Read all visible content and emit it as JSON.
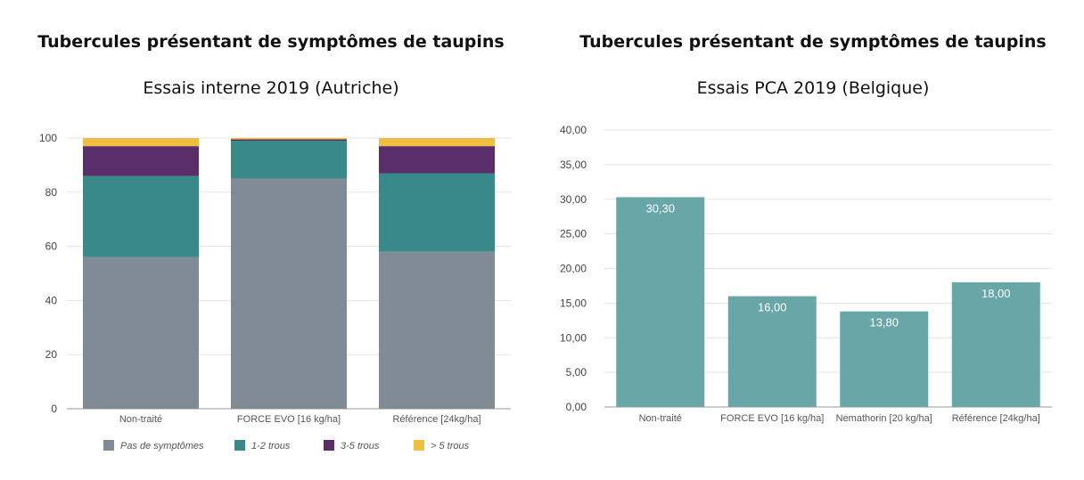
{
  "chart_data": [
    {
      "type": "bar",
      "stacked": true,
      "title": "Tubercules présentant de symptômes de taupins",
      "subtitle": "Essais interne 2019 (Autriche)",
      "categories": [
        "Non-traité",
        "FORCE EVO [16 kg/ha]",
        "Référence [24kg/ha]"
      ],
      "series": [
        {
          "name": "Pas de symptômes",
          "color": "#808b96",
          "values": [
            56,
            85,
            58
          ]
        },
        {
          "name": "1-2 trous",
          "color": "#39888a",
          "values": [
            30,
            14,
            29
          ]
        },
        {
          "name": "3-5 trous",
          "color": "#5a2e68",
          "values": [
            11,
            0.5,
            10
          ]
        },
        {
          "name": "> 5 trous",
          "color": "#f0be42",
          "values": [
            3,
            0.5,
            3
          ]
        }
      ],
      "ylim": [
        0,
        100
      ],
      "yticks": [
        "0",
        "20",
        "40",
        "60",
        "80",
        "100"
      ],
      "grid": true,
      "legend": "bottom"
    },
    {
      "type": "bar",
      "title": "Tubercules présentant de symptômes de taupins",
      "subtitle": "Essais PCA 2019 (Belgique)",
      "categories": [
        "Non-traité",
        "FORCE EVO [16 kg/ha]",
        "Nemathorin [20 kg/ha]",
        "Référence [24kg/ha]"
      ],
      "values": [
        30.3,
        16.0,
        13.8,
        18.0
      ],
      "value_labels": [
        "30,30",
        "16,00",
        "13,80",
        "18,00"
      ],
      "color": "#69a6a7",
      "ylim": [
        0,
        40
      ],
      "yticks": [
        "0,00",
        "5,00",
        "10,00",
        "15,00",
        "20,00",
        "25,00",
        "30,00",
        "35,00",
        "40,00"
      ],
      "grid": true
    }
  ]
}
